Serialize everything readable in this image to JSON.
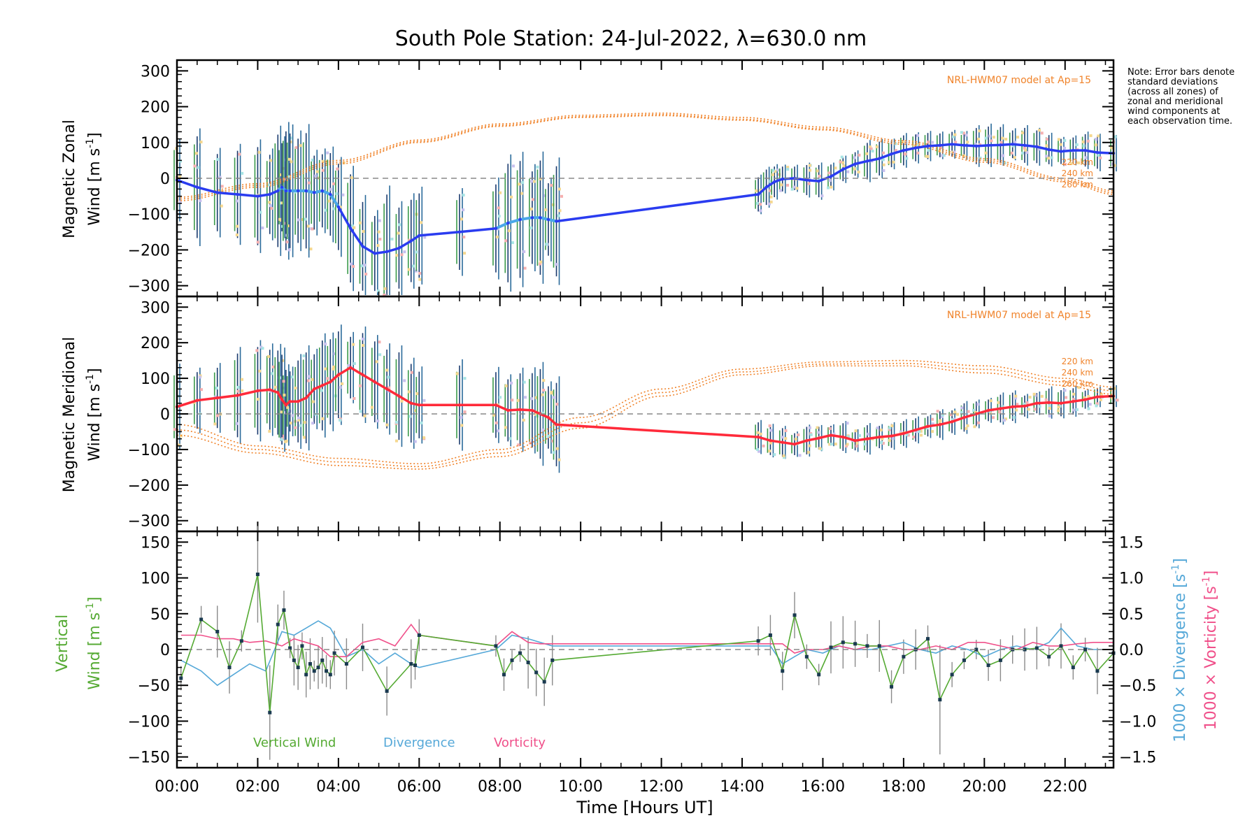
{
  "title": "South Pole Station: 24-Jul-2022, λ=630.0 nm",
  "note": "Note: Error bars denote standard deviations (across all zones) of zonal and meridional wind components at each observation time.",
  "x_axis": {
    "label": "Time [Hours UT]",
    "range": [
      0,
      23.2
    ],
    "ticks": [
      0,
      2,
      4,
      6,
      8,
      10,
      12,
      14,
      16,
      18,
      20,
      22
    ],
    "tick_labels": [
      "00:00",
      "02:00",
      "04:00",
      "06:00",
      "08:00",
      "10:00",
      "12:00",
      "14:00",
      "16:00",
      "18:00",
      "20:00",
      "22:00"
    ]
  },
  "colors": {
    "zonal_fit": "#2a3cf0",
    "zonal_fit_light": "#4aa8e8",
    "meridional_fit": "#ff2a3a",
    "model": "#f0832a",
    "vertical": "#55aa33",
    "divergence": "#55a8d8",
    "vorticity": "#f0508a",
    "bars_green": "#3a9a4a",
    "bars_navy": "#1a3a6e",
    "bars_teal": "#2a6a9a",
    "zero_line": "#888888"
  },
  "chart_data": [
    {
      "id": "zonal",
      "type": "line",
      "ylabel_line1": "Magnetic Zonal",
      "ylabel_line2": "Wind",
      "ylabel_units": "[m s",
      "ylabel_exp": "-1",
      "ylabel_close": "]",
      "ylim": [
        -330,
        330
      ],
      "yticks": [
        -300,
        -200,
        -100,
        0,
        100,
        200,
        300
      ],
      "ytick_labels": [
        "−300",
        "−200",
        "−100",
        "0",
        "100",
        "200",
        "300"
      ],
      "annotation": "NRL-HWM07 model at Ap=15",
      "model_labels": [
        "220 km",
        "240 km",
        "260 km"
      ],
      "series": [
        {
          "name": "Zonal wind fit",
          "x": [
            0,
            0.5,
            1.0,
            1.5,
            2.0,
            2.3,
            2.5,
            2.6,
            2.7,
            2.8,
            3.0,
            3.2,
            3.4,
            3.6,
            3.8,
            4.0,
            4.3,
            4.6,
            4.9,
            5.2,
            5.5,
            5.8,
            6.0,
            7.0,
            7.9,
            8.2,
            8.5,
            8.8,
            9.0,
            9.2,
            9.4,
            14.4,
            14.6,
            14.8,
            15.0,
            15.3,
            15.6,
            15.9,
            16.2,
            16.5,
            16.8,
            17.1,
            17.4,
            17.7,
            18.0,
            18.3,
            18.6,
            18.9,
            19.2,
            19.5,
            19.8,
            20.1,
            20.4,
            20.7,
            21.0,
            21.3,
            21.6,
            21.9,
            22.2,
            22.5,
            22.8,
            23.2
          ],
          "y": [
            -5,
            -25,
            -40,
            -45,
            -50,
            -45,
            -35,
            -25,
            -35,
            -35,
            -35,
            -35,
            -40,
            -35,
            -45,
            -80,
            -140,
            -190,
            -210,
            -205,
            -195,
            -175,
            -160,
            -150,
            -140,
            -125,
            -115,
            -110,
            -110,
            -115,
            -120,
            -45,
            -25,
            -10,
            -2,
            0,
            -5,
            -8,
            5,
            25,
            40,
            48,
            55,
            68,
            78,
            85,
            90,
            92,
            95,
            92,
            90,
            92,
            93,
            95,
            92,
            88,
            80,
            75,
            78,
            78,
            72,
            70
          ]
        },
        {
          "name": "HWM 220 km",
          "x": [
            0,
            2,
            4,
            6,
            8,
            10,
            12,
            14,
            16,
            18,
            20,
            22,
            23.2
          ],
          "y": [
            -63,
            -25,
            40,
            100,
            145,
            170,
            175,
            162,
            135,
            95,
            45,
            -10,
            -45
          ]
        },
        {
          "name": "HWM 240 km",
          "x": [
            0,
            2,
            4,
            6,
            8,
            10,
            12,
            14,
            16,
            18,
            20,
            22,
            23.2
          ],
          "y": [
            -58,
            -20,
            45,
            103,
            148,
            172,
            178,
            165,
            138,
            100,
            50,
            -5,
            -40
          ]
        },
        {
          "name": "HWM 260 km",
          "x": [
            0,
            2,
            4,
            6,
            8,
            10,
            12,
            14,
            16,
            18,
            20,
            22,
            23.2
          ],
          "y": [
            -53,
            -15,
            50,
            107,
            152,
            176,
            182,
            170,
            143,
            105,
            55,
            0,
            -35
          ]
        }
      ]
    },
    {
      "id": "meridional",
      "type": "line",
      "ylabel_line1": "Magnetic Meridional",
      "ylabel_line2": "Wind",
      "ylabel_units": "[m s",
      "ylabel_exp": "-1",
      "ylabel_close": "]",
      "ylim": [
        -330,
        330
      ],
      "yticks": [
        -300,
        -200,
        -100,
        0,
        100,
        200,
        300
      ],
      "ytick_labels": [
        "−300",
        "−200",
        "−100",
        "0",
        "100",
        "200",
        "300"
      ],
      "annotation": "NRL-HWM07 model at Ap=15",
      "model_labels": [
        "220 km",
        "240 km",
        "260 km"
      ],
      "series": [
        {
          "name": "Meridional wind fit",
          "x": [
            0,
            0.5,
            1.0,
            1.5,
            2.0,
            2.3,
            2.5,
            2.6,
            2.7,
            2.8,
            3.0,
            3.2,
            3.4,
            3.6,
            3.8,
            4.0,
            4.3,
            4.6,
            4.9,
            5.2,
            5.5,
            5.8,
            6.0,
            7.0,
            7.9,
            8.2,
            8.5,
            8.8,
            9.0,
            9.2,
            9.4,
            14.4,
            14.7,
            15.0,
            15.3,
            15.6,
            15.9,
            16.2,
            16.5,
            16.8,
            17.1,
            17.4,
            17.7,
            18.0,
            18.3,
            18.6,
            18.9,
            19.2,
            19.5,
            19.8,
            20.1,
            20.4,
            20.7,
            21.0,
            21.3,
            21.6,
            21.9,
            22.2,
            22.5,
            22.8,
            23.2
          ],
          "y": [
            20,
            38,
            45,
            52,
            65,
            68,
            60,
            40,
            25,
            35,
            35,
            45,
            70,
            80,
            90,
            110,
            130,
            110,
            90,
            70,
            50,
            30,
            25,
            25,
            25,
            10,
            12,
            10,
            0,
            -10,
            -30,
            -65,
            -75,
            -80,
            -85,
            -75,
            -68,
            -60,
            -65,
            -75,
            -70,
            -65,
            -62,
            -55,
            -45,
            -35,
            -30,
            -22,
            -10,
            0,
            10,
            15,
            20,
            22,
            30,
            32,
            30,
            35,
            40,
            48,
            50
          ]
        },
        {
          "name": "HWM 220 km",
          "x": [
            0,
            2,
            4,
            6,
            8,
            10,
            12,
            14,
            16,
            18,
            20,
            22,
            23.2
          ],
          "y": [
            -60,
            -110,
            -145,
            -155,
            -120,
            -40,
            50,
            110,
            135,
            135,
            115,
            80,
            55
          ]
        },
        {
          "name": "HWM 240 km",
          "x": [
            0,
            2,
            4,
            6,
            8,
            10,
            12,
            14,
            16,
            18,
            20,
            22,
            23.2
          ],
          "y": [
            -45,
            -100,
            -135,
            -148,
            -110,
            -25,
            60,
            118,
            140,
            142,
            125,
            90,
            65
          ]
        },
        {
          "name": "HWM 260 km",
          "x": [
            0,
            2,
            4,
            6,
            8,
            10,
            12,
            14,
            16,
            18,
            20,
            22,
            23.2
          ],
          "y": [
            -30,
            -90,
            -125,
            -140,
            -100,
            -10,
            70,
            126,
            146,
            150,
            135,
            100,
            75
          ]
        }
      ]
    },
    {
      "id": "vertical",
      "type": "line",
      "ylabel_line1": "Vertical",
      "ylabel_line2": "Wind",
      "ylabel_units": "[m s",
      "ylabel_exp": "-1",
      "ylabel_close": "]",
      "ylim": [
        -165,
        165
      ],
      "yticks": [
        -150,
        -100,
        -50,
        0,
        50,
        100,
        150
      ],
      "ytick_labels": [
        "−150",
        "−100",
        "−50",
        "0",
        "50",
        "100",
        "150"
      ],
      "right_axis": {
        "ylim": [
          -1.65,
          1.65
        ],
        "yticks": [
          -1.5,
          -1.0,
          -0.5,
          0.0,
          0.5,
          1.0,
          1.5
        ],
        "ytick_labels": [
          "−1.5",
          "−1.0",
          "−0.5",
          "0.0",
          "0.5",
          "1.0",
          "1.5"
        ],
        "label_divergence": "1000 × Divergence",
        "label_vorticity": "1000 × Vorticity",
        "units": "[s",
        "exp": "-1",
        "close": "]"
      },
      "legend": [
        "Vertical Wind",
        "Divergence",
        "Vorticity"
      ],
      "series": [
        {
          "name": "Vertical Wind",
          "x": [
            0.1,
            0.6,
            1.0,
            1.3,
            1.6,
            2.0,
            2.3,
            2.5,
            2.65,
            2.8,
            2.9,
            3.0,
            3.1,
            3.2,
            3.3,
            3.4,
            3.5,
            3.6,
            3.7,
            3.8,
            3.9,
            4.2,
            4.6,
            5.2,
            5.8,
            5.9,
            6.0,
            7.9,
            8.1,
            8.3,
            8.5,
            8.7,
            8.9,
            9.1,
            9.3,
            14.4,
            14.7,
            15.0,
            15.3,
            15.6,
            15.9,
            16.2,
            16.5,
            16.8,
            17.1,
            17.4,
            17.7,
            18.0,
            18.3,
            18.6,
            18.9,
            19.2,
            19.5,
            19.8,
            20.1,
            20.4,
            20.7,
            21.0,
            21.3,
            21.6,
            21.9,
            22.2,
            22.5,
            22.8,
            23.2
          ],
          "y": [
            -40,
            42,
            25,
            -25,
            12,
            105,
            -88,
            35,
            55,
            2,
            -15,
            -25,
            5,
            -35,
            -20,
            -30,
            -25,
            -15,
            -30,
            -35,
            -5,
            -20,
            3,
            -58,
            -20,
            -22,
            20,
            5,
            -35,
            -15,
            -5,
            -18,
            -32,
            -45,
            -15,
            12,
            20,
            -30,
            48,
            -10,
            -35,
            3,
            10,
            8,
            5,
            5,
            -52,
            -10,
            0,
            15,
            -70,
            -35,
            -15,
            0,
            -22,
            -15,
            0,
            0,
            2,
            -10,
            5,
            -25,
            0,
            -30,
            -5
          ]
        },
        {
          "name": "Divergence",
          "x": [
            0.1,
            0.6,
            1.0,
            1.4,
            1.8,
            2.2,
            2.6,
            2.9,
            3.2,
            3.5,
            3.8,
            4.2,
            4.6,
            5.0,
            5.4,
            5.8,
            6.0,
            7.9,
            8.3,
            8.7,
            9.0,
            9.3,
            14.4,
            14.7,
            15.0,
            15.3,
            15.6,
            16.0,
            16.4,
            16.8,
            17.2,
            17.6,
            18.0,
            18.4,
            18.8,
            19.2,
            19.6,
            20.0,
            20.4,
            20.8,
            21.2,
            21.6,
            21.9,
            22.3,
            22.7,
            23.2
          ],
          "y": [
            -0.15,
            -0.3,
            -0.5,
            -0.35,
            -0.2,
            -0.3,
            0.25,
            0.2,
            0.3,
            0.4,
            0.3,
            -0.1,
            0.0,
            -0.2,
            -0.05,
            -0.2,
            -0.25,
            0.0,
            0.2,
            0.15,
            0.1,
            0.05,
            0.05,
            0.05,
            -0.2,
            -0.1,
            0.0,
            -0.05,
            0.05,
            0.0,
            0.0,
            0.05,
            0.1,
            0.0,
            -0.05,
            0.05,
            0.0,
            -0.1,
            0.0,
            0.05,
            0.0,
            0.1,
            0.3,
            0.05,
            0.0,
            0.0
          ]
        },
        {
          "name": "Vorticity",
          "x": [
            0.1,
            0.6,
            1.0,
            1.4,
            1.8,
            2.2,
            2.6,
            2.9,
            3.2,
            3.5,
            3.8,
            4.2,
            4.6,
            5.0,
            5.4,
            5.8,
            6.0,
            7.9,
            8.3,
            8.7,
            9.0,
            9.3,
            14.4,
            14.7,
            15.0,
            15.3,
            15.6,
            16.0,
            16.4,
            16.8,
            17.2,
            17.6,
            18.0,
            18.4,
            18.8,
            19.2,
            19.6,
            20.0,
            20.4,
            20.8,
            21.2,
            21.6,
            21.9,
            22.3,
            22.7,
            23.2
          ],
          "y": [
            0.2,
            0.2,
            0.15,
            0.15,
            0.1,
            0.12,
            0.05,
            0.15,
            0.1,
            0.05,
            -0.1,
            -0.1,
            0.1,
            0.15,
            0.05,
            0.35,
            0.2,
            0.05,
            0.25,
            0.1,
            0.08,
            0.08,
            0.08,
            0.08,
            0.08,
            -0.05,
            0.0,
            0.0,
            0.05,
            0.0,
            0.05,
            0.05,
            0.0,
            0.0,
            0.05,
            0.0,
            0.1,
            0.1,
            0.05,
            0.0,
            0.1,
            0.05,
            0.05,
            0.08,
            0.1,
            0.1
          ]
        }
      ]
    }
  ]
}
